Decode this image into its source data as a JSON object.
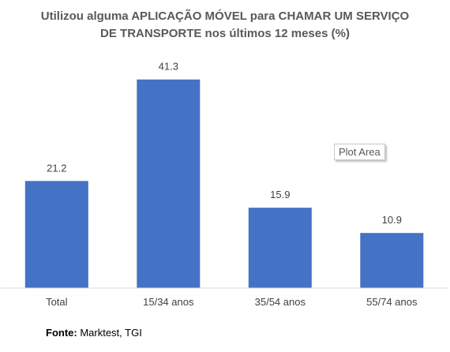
{
  "chart_data": {
    "type": "bar",
    "title_lines": [
      "Utilizou alguma APLICAÇÃO MÓVEL para CHAMAR UM SERVIÇO",
      "DE TRANSPORTE nos últimos 12 meses (%)"
    ],
    "categories": [
      "Total",
      "15/34 anos",
      "35/54 anos",
      "55/74 anos"
    ],
    "values": [
      21.2,
      41.3,
      15.9,
      10.9
    ],
    "value_labels": [
      "21.2",
      "41.3",
      "15.9",
      "10.9"
    ],
    "xlabel": "",
    "ylabel": "",
    "ylim": [
      0,
      50
    ],
    "grid": false,
    "legend": "none",
    "bar_color": "#4472c4",
    "axis_color": "#d9d9d9"
  },
  "tooltip": {
    "label": "Plot Area"
  },
  "source": {
    "label": "Fonte:",
    "text": " Marktest, TGI"
  }
}
